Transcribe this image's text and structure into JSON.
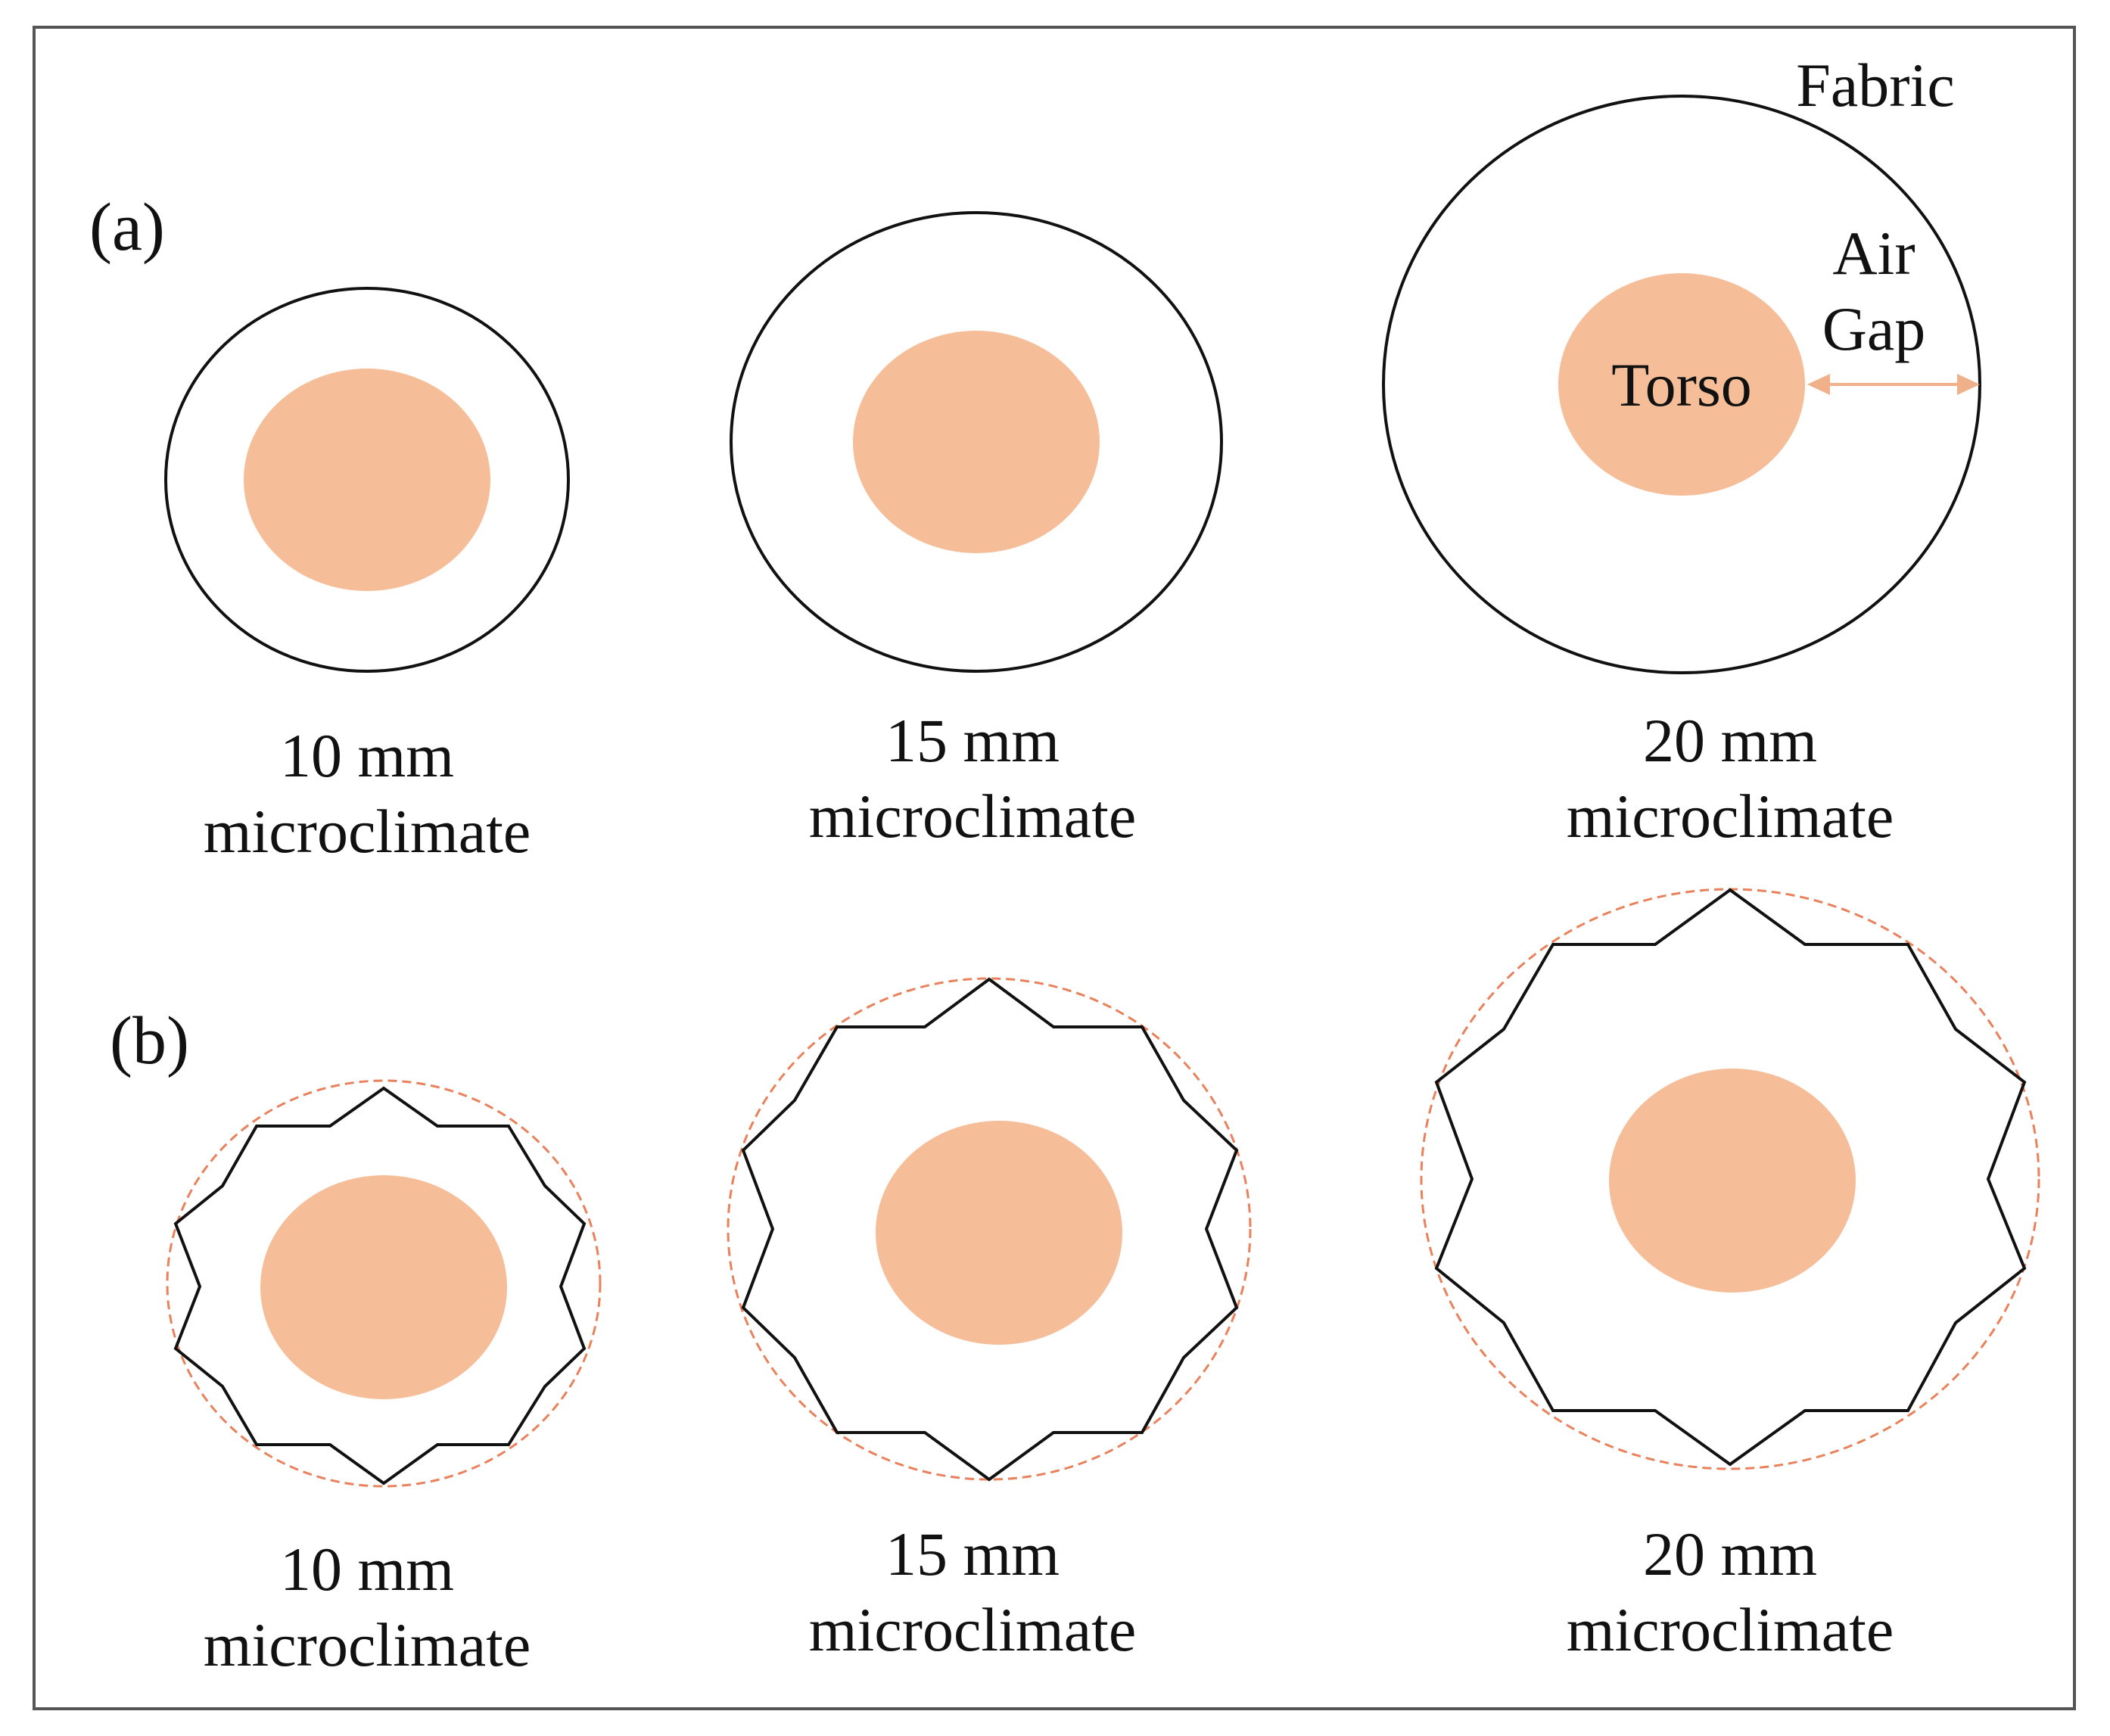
{
  "panels": {
    "a": {
      "label": "(a)"
    },
    "b": {
      "label": "(b)"
    }
  },
  "annotations": {
    "fabric": "Fabric",
    "air": "Air",
    "gap": "Gap",
    "torso": "Torso"
  },
  "captions": {
    "a1": {
      "line1": "10 mm",
      "line2": "microclimate"
    },
    "a2": {
      "line1": "15 mm",
      "line2": "microclimate"
    },
    "a3": {
      "line1": "20 mm",
      "line2": "microclimate"
    },
    "b1": {
      "line1": "10 mm",
      "line2": "microclimate"
    },
    "b2": {
      "line1": "15 mm",
      "line2": "microclimate"
    },
    "b3": {
      "line1": "20 mm",
      "line2": "microclimate"
    }
  },
  "colors": {
    "torso": "#f6be98",
    "fabric_line": "#111111",
    "dashed_circle": "#e9825c",
    "arrow": "#f0b08a",
    "frame": "#555555"
  }
}
